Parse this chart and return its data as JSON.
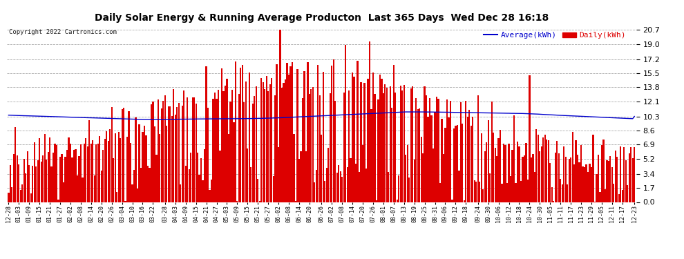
{
  "title": "Daily Solar Energy & Running Average Producton  Last 365 Days  Wed Dec 28 16:18",
  "copyright": "Copyright 2022 Cartronics.com",
  "legend_avg": "Average(kWh)",
  "legend_daily": "Daily(kWh)",
  "avg_color": "#0000cc",
  "daily_color": "#dd0000",
  "background_color": "#ffffff",
  "grid_color": "#aaaaaa",
  "yticks": [
    0.0,
    1.7,
    3.4,
    5.2,
    6.9,
    8.6,
    10.3,
    12.1,
    13.8,
    15.5,
    17.2,
    19.0,
    20.7
  ],
  "ylim": [
    0.0,
    21.5
  ],
  "xlabels": [
    "12-28",
    "01-03",
    "01-09",
    "01-15",
    "01-21",
    "01-27",
    "02-02",
    "02-08",
    "02-14",
    "02-20",
    "02-26",
    "03-04",
    "03-10",
    "03-16",
    "03-22",
    "03-28",
    "04-03",
    "04-09",
    "04-15",
    "04-21",
    "04-27",
    "05-03",
    "05-09",
    "05-15",
    "05-21",
    "05-27",
    "06-02",
    "06-08",
    "06-14",
    "06-20",
    "06-26",
    "07-02",
    "07-08",
    "07-14",
    "07-20",
    "07-26",
    "08-01",
    "08-07",
    "08-13",
    "08-19",
    "08-25",
    "08-31",
    "09-06",
    "09-12",
    "09-18",
    "09-24",
    "09-30",
    "10-06",
    "10-12",
    "10-18",
    "10-24",
    "10-30",
    "11-05",
    "11-11",
    "11-17",
    "11-23",
    "11-29",
    "12-05",
    "12-11",
    "12-17",
    "12-23"
  ],
  "avg_curve": [
    10.45,
    10.44,
    10.43,
    10.42,
    10.42,
    10.41,
    10.4,
    10.4,
    10.39,
    10.38,
    10.38,
    10.37,
    10.36,
    10.36,
    10.35,
    10.34,
    10.34,
    10.33,
    10.32,
    10.32,
    10.31,
    10.3,
    10.3,
    10.29,
    10.28,
    10.28,
    10.27,
    10.26,
    10.26,
    10.25,
    10.24,
    10.24,
    10.23,
    10.22,
    10.22,
    10.21,
    10.2,
    10.2,
    10.19,
    10.18,
    10.18,
    10.17,
    10.16,
    10.16,
    10.15,
    10.14,
    10.14,
    10.13,
    10.12,
    10.12,
    10.11,
    10.1,
    10.1,
    10.09,
    10.08,
    10.08,
    10.07,
    10.06,
    10.06,
    10.05,
    10.04,
    10.04,
    10.03,
    10.02,
    10.02,
    10.01,
    10.0,
    10.0,
    9.99,
    9.98,
    9.98,
    9.97,
    9.96,
    9.96,
    9.95,
    9.94,
    9.94,
    9.93,
    9.93,
    9.93,
    9.93,
    9.93,
    9.93,
    9.93,
    9.93,
    9.93,
    9.93,
    9.93,
    9.94,
    9.94,
    9.94,
    9.94,
    9.95,
    9.95,
    9.95,
    9.95,
    9.96,
    9.96,
    9.97,
    9.97,
    9.97,
    9.97,
    9.98,
    9.98,
    9.98,
    9.98,
    9.99,
    9.99,
    9.99,
    9.99,
    9.99,
    10.0,
    10.0,
    10.0,
    10.0,
    10.0,
    10.0,
    10.01,
    10.01,
    10.01,
    10.01,
    10.01,
    10.01,
    10.02,
    10.02,
    10.02,
    10.02,
    10.02,
    10.02,
    10.03,
    10.03,
    10.03,
    10.03,
    10.03,
    10.04,
    10.04,
    10.04,
    10.04,
    10.05,
    10.05,
    10.05,
    10.06,
    10.06,
    10.07,
    10.07,
    10.08,
    10.08,
    10.09,
    10.1,
    10.1,
    10.11,
    10.12,
    10.13,
    10.13,
    10.14,
    10.15,
    10.16,
    10.17,
    10.18,
    10.19,
    10.2,
    10.21,
    10.22,
    10.23,
    10.24,
    10.25,
    10.26,
    10.27,
    10.28,
    10.29,
    10.3,
    10.31,
    10.32,
    10.33,
    10.34,
    10.35,
    10.36,
    10.37,
    10.38,
    10.39,
    10.4,
    10.41,
    10.42,
    10.43,
    10.44,
    10.45,
    10.46,
    10.47,
    10.48,
    10.49,
    10.5,
    10.51,
    10.52,
    10.53,
    10.54,
    10.55,
    10.56,
    10.57,
    10.58,
    10.59,
    10.6,
    10.61,
    10.62,
    10.63,
    10.64,
    10.65,
    10.66,
    10.67,
    10.68,
    10.69,
    10.7,
    10.71,
    10.72,
    10.73,
    10.74,
    10.75,
    10.76,
    10.77,
    10.78,
    10.79,
    10.8,
    10.81,
    10.82,
    10.83,
    10.84,
    10.84,
    10.84,
    10.84,
    10.84,
    10.84,
    10.84,
    10.84,
    10.84,
    10.84,
    10.84,
    10.83,
    10.83,
    10.83,
    10.83,
    10.83,
    10.82,
    10.82,
    10.82,
    10.82,
    10.81,
    10.81,
    10.81,
    10.8,
    10.8,
    10.8,
    10.79,
    10.79,
    10.79,
    10.78,
    10.78,
    10.78,
    10.77,
    10.77,
    10.77,
    10.76,
    10.76,
    10.76,
    10.75,
    10.75,
    10.75,
    10.74,
    10.74,
    10.74,
    10.73,
    10.73,
    10.72,
    10.72,
    10.72,
    10.71,
    10.71,
    10.71,
    10.7,
    10.7,
    10.7,
    10.69,
    10.69,
    10.68,
    10.68,
    10.68,
    10.67,
    10.67,
    10.67,
    10.66,
    10.66,
    10.65,
    10.65,
    10.65,
    10.64,
    10.64,
    10.63,
    10.62,
    10.61,
    10.6,
    10.59,
    10.58,
    10.57,
    10.55,
    10.54,
    10.53,
    10.52,
    10.51,
    10.5,
    10.49,
    10.48,
    10.47,
    10.45,
    10.44,
    10.43,
    10.42,
    10.41,
    10.4,
    10.39,
    10.38,
    10.37,
    10.36,
    10.35,
    10.34,
    10.33,
    10.32,
    10.31,
    10.3,
    10.29,
    10.28,
    10.27,
    10.26,
    10.25,
    10.24,
    10.23,
    10.22,
    10.21,
    10.2,
    10.19,
    10.18,
    10.17,
    10.16,
    10.15,
    10.14,
    10.13,
    10.12,
    10.11,
    10.1,
    10.09,
    10.08,
    10.07,
    10.06,
    10.05,
    10.04,
    10.03,
    10.02,
    10.3
  ]
}
